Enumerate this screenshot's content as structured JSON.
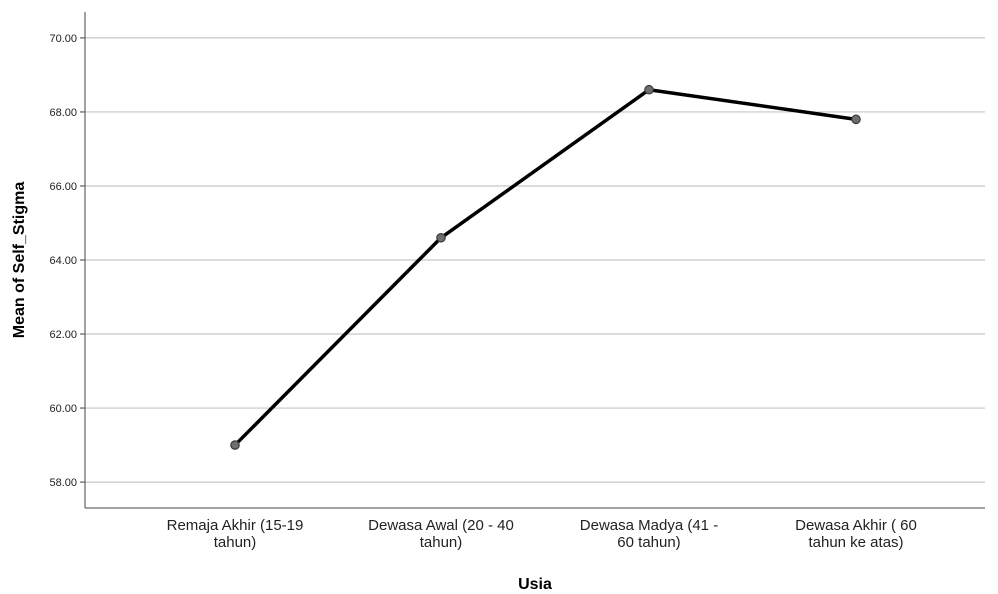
{
  "chart_data": {
    "type": "line",
    "categories": [
      [
        "Remaja Akhir (15-19",
        "tahun)"
      ],
      [
        "Dewasa Awal (20 - 40",
        "tahun)"
      ],
      [
        "Dewasa Madya (41 -",
        "60 tahun)"
      ],
      [
        "Dewasa Akhir ( 60",
        "tahun ke atas)"
      ]
    ],
    "values": [
      59.0,
      64.6,
      68.6,
      67.8
    ],
    "xlabel": "Usia",
    "ylabel": "Mean of Self_Stigma",
    "ylim": [
      57.3,
      70.7
    ],
    "yticks": [
      "58.00",
      "60.00",
      "62.00",
      "64.00",
      "66.00",
      "68.00",
      "70.00"
    ],
    "grid": true,
    "colors": {
      "line": "#000000",
      "marker_fill": "#6e6e6e",
      "grid": "#c8c8c8",
      "axis": "#444444"
    }
  }
}
